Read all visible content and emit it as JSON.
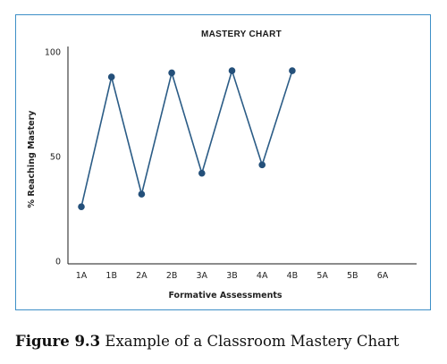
{
  "chart_data": {
    "type": "line",
    "title": "MASTERY CHART",
    "xlabel": "Formative Assessments",
    "ylabel": "% Reaching Mastery",
    "categories": [
      "1A",
      "1B",
      "2A",
      "2B",
      "3A",
      "3B",
      "4A",
      "4B",
      "5A",
      "5B",
      "6A"
    ],
    "yticks": [
      "0",
      "50",
      "100"
    ],
    "ylim": [
      0,
      100
    ],
    "series": [
      {
        "values": [
          26,
          88,
          32,
          90,
          42,
          91,
          46,
          91,
          null,
          null,
          null
        ]
      }
    ],
    "colors": {
      "line": "#2b5c86",
      "marker": "#24507a",
      "axis": "#1a1a1a",
      "frame": "#3d8fc7"
    },
    "grid": false
  },
  "caption": {
    "label": "Figure 9.3",
    "text": " Example of a Classroom Mastery Chart"
  }
}
